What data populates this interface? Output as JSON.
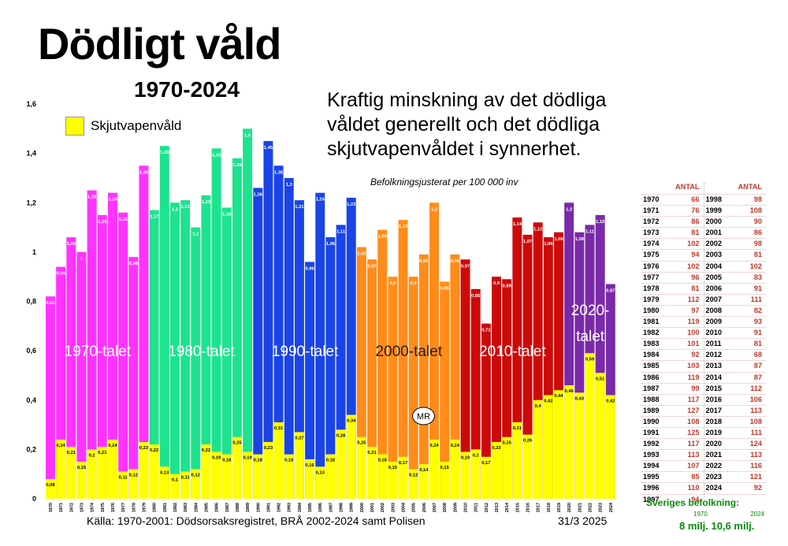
{
  "title": "Dödligt våld",
  "subtitle": "1970-2024",
  "headline": "Kraftig minskning av det dödliga våldet generellt och det dödliga skjutvapenvåldet i synnerhet.",
  "note": "Befolkningsjusterat per 100 000 inv",
  "source": "Källa: 1970-2001: Dödsorsaksregistret, BRÅ 2002-2024 samt Polisen",
  "date": "31/3 2025",
  "legend_label": "Skjutvapenvåld",
  "chart_data": {
    "type": "bar",
    "ylim": [
      0,
      1.6
    ],
    "yticks": [
      "0",
      "0,2",
      "0,4",
      "0,6",
      "0,8",
      "1",
      "1,2",
      "1,4",
      "1,6"
    ],
    "years": [
      "1970",
      "1971",
      "1972",
      "1973",
      "1974",
      "1975",
      "1976",
      "1977",
      "1978",
      "1979",
      "1980",
      "1981",
      "1982",
      "1983",
      "1984",
      "1985",
      "1986",
      "1987",
      "1988",
      "1989",
      "1990",
      "1991",
      "1992",
      "1993",
      "1994",
      "1995",
      "1996",
      "1997",
      "1998",
      "1999",
      "2000",
      "2001",
      "2002",
      "2003",
      "2004",
      "2005",
      "2006",
      "2007",
      "2008",
      "2009",
      "2010",
      "2011",
      "2012",
      "2013",
      "2014",
      "2015",
      "2016",
      "2017",
      "2018",
      "2019",
      "2020",
      "2021",
      "2022",
      "2023",
      "2024"
    ],
    "series": [
      {
        "name": "",
        "values": [
          0.82,
          0.94,
          1.06,
          1.0,
          1.25,
          1.15,
          1.24,
          1.16,
          0.98,
          1.35,
          1.17,
          1.43,
          1.2,
          1.21,
          1.1,
          1.23,
          1.42,
          1.18,
          1.38,
          1.5,
          1.26,
          1.45,
          1.35,
          1.3,
          1.21,
          0.96,
          1.24,
          1.06,
          1.11,
          1.22,
          1.02,
          0.97,
          1.09,
          0.9,
          1.13,
          0.9,
          0.99,
          1.2,
          0.88,
          0.99,
          0.97,
          0.85,
          0.71,
          0.9,
          0.89,
          1.14,
          1.07,
          1.12,
          1.06,
          1.08,
          1.2,
          1.08,
          1.11,
          1.15,
          0.87
        ],
        "labels": [
          "0,82",
          "0,94",
          "1,06",
          "1",
          "1,25",
          "1,15",
          "1,24",
          "1,16",
          "0,98",
          "1,35",
          "1,17",
          "1,43",
          "1,2",
          "1,21",
          "1,1",
          "1,23",
          "1,42",
          "1,18",
          "1,38",
          "1,5",
          "1,26",
          "1,45",
          "1,35",
          "1,3",
          "1,21",
          "0,96",
          "1,24",
          "1,06",
          "1,11",
          "1,22",
          "1,02",
          "0,97",
          "1,09",
          "0,9",
          "1,13",
          "0,9",
          "0,99",
          "1,2",
          "0,88",
          "0,99",
          "0,97",
          "0,85",
          "0,71",
          "0,9",
          "0,89",
          "1,14",
          "1,07",
          "1,12",
          "1,06",
          "1,08",
          "1,2",
          "1,08",
          "1,11",
          "1,15",
          "0,87"
        ]
      },
      {
        "name": "Skjutvapenvåld",
        "values": [
          0.08,
          0.24,
          0.21,
          0.15,
          0.2,
          0.21,
          0.24,
          0.11,
          0.12,
          0.23,
          0.22,
          0.13,
          0.1,
          0.11,
          0.12,
          0.22,
          0.19,
          0.18,
          0.25,
          0.19,
          0.18,
          0.23,
          0.31,
          0.18,
          0.27,
          0.16,
          0.13,
          0.18,
          0.28,
          0.34,
          0.25,
          0.21,
          0.18,
          0.15,
          0.17,
          0.12,
          0.14,
          0.24,
          0.15,
          0.24,
          0.19,
          0.2,
          0.17,
          0.23,
          0.25,
          0.31,
          0.26,
          0.4,
          0.42,
          0.44,
          0.46,
          0.43,
          0.59,
          0.51,
          0.42
        ],
        "labels": [
          "0,08",
          "0,24",
          "0,21",
          "0,15",
          "0,2",
          "0,21",
          "0,24",
          "0,11",
          "0,12",
          "0,23",
          "0,22",
          "0,13",
          "0,1",
          "0,11",
          "0,12",
          "0,22",
          "0,19",
          "0,18",
          "0,25",
          "0,19",
          "0,18",
          "0,23",
          "0,31",
          "0,18",
          "0,27",
          "0,16",
          "0,13",
          "0,18",
          "0,28",
          "0,34",
          "0,25",
          "0,21",
          "0,18",
          "0,15",
          "0,17",
          "0,12",
          "0,14",
          "0,24",
          "0,15",
          "0,24",
          "0,19",
          "0,2",
          "0,17",
          "0,23",
          "0,25",
          "0,31",
          "0,26",
          "0,4",
          "0,42",
          "0,44",
          "0,46",
          "0,43",
          "0,59",
          "0,51",
          "0,42"
        ]
      }
    ],
    "decades": [
      {
        "label": "1970-talet",
        "start": 0,
        "end": 9,
        "color": "#ff33ff"
      },
      {
        "label": "1980-talet",
        "start": 10,
        "end": 19,
        "color": "#1de38f"
      },
      {
        "label": "1990-talet",
        "start": 20,
        "end": 29,
        "color": "#1a44e6"
      },
      {
        "label": "2000-talet",
        "start": 30,
        "end": 39,
        "color": "#ff8c1a"
      },
      {
        "label": "2010-talet",
        "start": 40,
        "end": 49,
        "color": "#cc0a0a"
      },
      {
        "label": "2020-\ntalet",
        "start": 50,
        "end": 54,
        "color": "#7a2aa8"
      }
    ],
    "firearm_color": "#ffff00",
    "annotation": {
      "text": "MR",
      "index": 36
    }
  },
  "side_table": {
    "header": "ANTAL",
    "rows": [
      [
        "1970",
        "66",
        "1998",
        "98"
      ],
      [
        "1971",
        "76",
        "1999",
        "108"
      ],
      [
        "1972",
        "86",
        "2000",
        "90"
      ],
      [
        "1973",
        "81",
        "2001",
        "86"
      ],
      [
        "1974",
        "102",
        "2002",
        "98"
      ],
      [
        "1975",
        "94",
        "2003",
        "81"
      ],
      [
        "1976",
        "102",
        "2004",
        "102"
      ],
      [
        "1977",
        "96",
        "2005",
        "83"
      ],
      [
        "1978",
        "81",
        "2006",
        "91"
      ],
      [
        "1979",
        "112",
        "2007",
        "111"
      ],
      [
        "1980",
        "97",
        "2008",
        "82"
      ],
      [
        "1981",
        "119",
        "2009",
        "93"
      ],
      [
        "1982",
        "100",
        "2010",
        "91"
      ],
      [
        "1983",
        "101",
        "2011",
        "81"
      ],
      [
        "1984",
        "92",
        "2012",
        "68"
      ],
      [
        "1985",
        "103",
        "2013",
        "87"
      ],
      [
        "1986",
        "119",
        "2014",
        "87"
      ],
      [
        "1987",
        "99",
        "2015",
        "112"
      ],
      [
        "1988",
        "117",
        "2016",
        "106"
      ],
      [
        "1989",
        "127",
        "2017",
        "113"
      ],
      [
        "1990",
        "108",
        "2018",
        "108"
      ],
      [
        "1991",
        "125",
        "2019",
        "111"
      ],
      [
        "1992",
        "117",
        "2020",
        "124"
      ],
      [
        "1993",
        "113",
        "2021",
        "113"
      ],
      [
        "1994",
        "107",
        "2022",
        "116"
      ],
      [
        "1995",
        "85",
        "2023",
        "121"
      ],
      [
        "1996",
        "110",
        "2024",
        "92"
      ],
      [
        "1997",
        "94",
        "",
        ""
      ]
    ]
  },
  "population": {
    "label": "Sveriges befolkning:",
    "year_a": "1970",
    "year_b": "2024",
    "value_a": "8 milj.",
    "value_b": "10,6 milj."
  }
}
